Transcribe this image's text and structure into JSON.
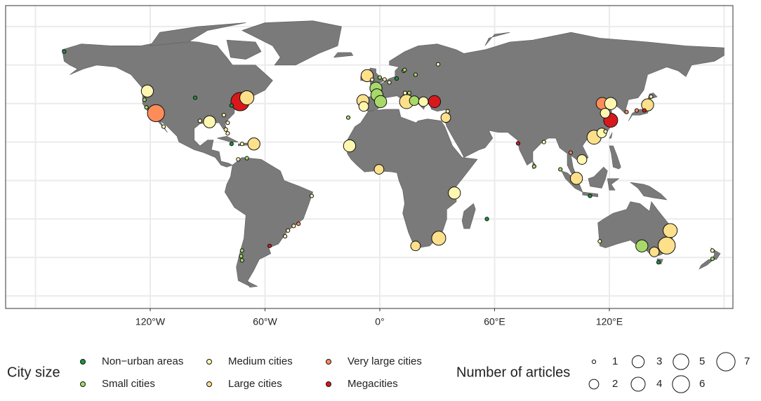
{
  "chart_data": {
    "type": "bubble-map",
    "xlim": [
      -195.6,
      184.6
    ],
    "ylim": [
      -66.5,
      90.9
    ],
    "xticks": [
      {
        "value": -120,
        "label": "120°W"
      },
      {
        "value": -60,
        "label": "60°W"
      },
      {
        "value": 0,
        "label": "0°"
      },
      {
        "value": 60,
        "label": "60°E"
      },
      {
        "value": 120,
        "label": "120°E"
      }
    ],
    "xgrid": [
      -180,
      -120,
      -60,
      0,
      60,
      120,
      180
    ],
    "ygrid": [
      -60,
      -40,
      -20,
      0,
      20,
      40,
      60,
      80
    ],
    "color_legend": {
      "title": "City size",
      "categories": [
        {
          "name": "Non−urban areas",
          "color": "#1a9641"
        },
        {
          "name": "Small cities",
          "color": "#a6d96a"
        },
        {
          "name": "Medium cities",
          "color": "#fff7b0"
        },
        {
          "name": "Large cities",
          "color": "#fee08b"
        },
        {
          "name": "Very large cities",
          "color": "#fc8d59"
        },
        {
          "name": "Megacities",
          "color": "#d7191c"
        }
      ]
    },
    "size_legend": {
      "title": "Number of articles",
      "values": [
        1,
        2,
        3,
        4,
        5,
        6,
        7
      ]
    },
    "points": [
      {
        "lon": -165,
        "lat": 67,
        "articles": 1,
        "class": 0
      },
      {
        "lon": -121.5,
        "lat": 46.5,
        "articles": 3,
        "class": 2
      },
      {
        "lon": -123,
        "lat": 42,
        "articles": 1,
        "class": 1
      },
      {
        "lon": -122,
        "lat": 38,
        "articles": 1,
        "class": 1
      },
      {
        "lon": -117,
        "lat": 35,
        "articles": 6,
        "class": 4
      },
      {
        "lon": -113,
        "lat": 28,
        "articles": 1,
        "class": 2
      },
      {
        "lon": -96.5,
        "lat": 43,
        "articles": 1,
        "class": 0
      },
      {
        "lon": -94,
        "lat": 31,
        "articles": 1,
        "class": 2
      },
      {
        "lon": -89,
        "lat": 30.5,
        "articles": 3,
        "class": 2
      },
      {
        "lon": -81.5,
        "lat": 34,
        "articles": 1,
        "class": 2
      },
      {
        "lon": -77.5,
        "lat": 39,
        "articles": 1,
        "class": 0
      },
      {
        "lon": -73,
        "lat": 41,
        "articles": 7,
        "class": 5
      },
      {
        "lon": -69.5,
        "lat": 43,
        "articles": 4,
        "class": 3
      },
      {
        "lon": -79.5,
        "lat": 30,
        "articles": 1,
        "class": 2
      },
      {
        "lon": -80.5,
        "lat": 26.5,
        "articles": 1,
        "class": 2
      },
      {
        "lon": -79.5,
        "lat": 24.5,
        "articles": 1,
        "class": 2
      },
      {
        "lon": -77.5,
        "lat": 19,
        "articles": 1,
        "class": 0
      },
      {
        "lon": -72,
        "lat": 19,
        "articles": 1,
        "class": 2
      },
      {
        "lon": -65.8,
        "lat": 19,
        "articles": 3,
        "class": 3
      },
      {
        "lon": -74,
        "lat": 11,
        "articles": 1,
        "class": 2
      },
      {
        "lon": -69.5,
        "lat": 11.6,
        "articles": 1,
        "class": 1
      },
      {
        "lon": -35.6,
        "lat": -8,
        "articles": 1,
        "class": 2
      },
      {
        "lon": -42.5,
        "lat": -22.5,
        "articles": 1,
        "class": 4
      },
      {
        "lon": -45,
        "lat": -23.6,
        "articles": 1,
        "class": 2
      },
      {
        "lon": -48,
        "lat": -26,
        "articles": 1,
        "class": 2
      },
      {
        "lon": -49.5,
        "lat": -29,
        "articles": 1,
        "class": 2
      },
      {
        "lon": -57.6,
        "lat": -34,
        "articles": 1,
        "class": 5
      },
      {
        "lon": -72,
        "lat": -36.4,
        "articles": 1,
        "class": 1
      },
      {
        "lon": -72.5,
        "lat": -39.3,
        "articles": 1,
        "class": 1
      },
      {
        "lon": -72,
        "lat": -41.5,
        "articles": 1,
        "class": 1
      },
      {
        "lon": -6.6,
        "lat": 54.5,
        "articles": 3,
        "class": 3
      },
      {
        "lon": -4,
        "lat": 52.4,
        "articles": 1,
        "class": 2
      },
      {
        "lon": 0,
        "lat": 53.5,
        "articles": 1,
        "class": 1
      },
      {
        "lon": -2,
        "lat": 48,
        "articles": 3,
        "class": 1
      },
      {
        "lon": -1.5,
        "lat": 44.5,
        "articles": 3,
        "class": 1
      },
      {
        "lon": 5,
        "lat": 51,
        "articles": 1,
        "class": 2
      },
      {
        "lon": 2.5,
        "lat": 52.5,
        "articles": 1,
        "class": 2
      },
      {
        "lon": 12.5,
        "lat": 57,
        "articles": 1,
        "class": 1
      },
      {
        "lon": 8.8,
        "lat": 53,
        "articles": 1,
        "class": 0
      },
      {
        "lon": 13,
        "lat": 57.5,
        "articles": 1,
        "class": 1
      },
      {
        "lon": 13.2,
        "lat": 45.5,
        "articles": 1,
        "class": 2
      },
      {
        "lon": 15.4,
        "lat": 45.5,
        "articles": 1,
        "class": 1
      },
      {
        "lon": 18.7,
        "lat": 55,
        "articles": 1,
        "class": 1
      },
      {
        "lon": 30.5,
        "lat": 60.4,
        "articles": 1,
        "class": 2
      },
      {
        "lon": -8.8,
        "lat": 41.5,
        "articles": 3,
        "class": 3
      },
      {
        "lon": -8.4,
        "lat": 38.5,
        "articles": 2,
        "class": 2
      },
      {
        "lon": 0.4,
        "lat": 41,
        "articles": 3,
        "class": 1
      },
      {
        "lon": 14,
        "lat": 41,
        "articles": 4,
        "class": 3
      },
      {
        "lon": 18,
        "lat": 41.5,
        "articles": 2,
        "class": 1
      },
      {
        "lon": 22.8,
        "lat": 41,
        "articles": 2,
        "class": 2
      },
      {
        "lon": 28.6,
        "lat": 41,
        "articles": 3,
        "class": 5
      },
      {
        "lon": 34.5,
        "lat": 32.7,
        "articles": 2,
        "class": 3
      },
      {
        "lon": 35.5,
        "lat": 36,
        "articles": 1,
        "class": 2
      },
      {
        "lon": -16.5,
        "lat": 32.7,
        "articles": 1,
        "class": 1
      },
      {
        "lon": -15.8,
        "lat": 18,
        "articles": 3,
        "class": 2
      },
      {
        "lon": -0.4,
        "lat": 5.8,
        "articles": 2,
        "class": 3
      },
      {
        "lon": 39,
        "lat": -6.5,
        "articles": 3,
        "class": 2
      },
      {
        "lon": 18.7,
        "lat": -34,
        "articles": 2,
        "class": 3
      },
      {
        "lon": 30.8,
        "lat": -30,
        "articles": 4,
        "class": 3
      },
      {
        "lon": 56,
        "lat": -20,
        "articles": 1,
        "class": 0
      },
      {
        "lon": 72.3,
        "lat": 19.3,
        "articles": 1,
        "class": 5
      },
      {
        "lon": 85.8,
        "lat": 20,
        "articles": 1,
        "class": 2
      },
      {
        "lon": 80.7,
        "lat": 7.3,
        "articles": 1,
        "class": 1
      },
      {
        "lon": 94.4,
        "lat": 5.8,
        "articles": 1,
        "class": 1
      },
      {
        "lon": 102.8,
        "lat": 1.1,
        "articles": 3,
        "class": 3
      },
      {
        "lon": 105.7,
        "lat": 10.9,
        "articles": 2,
        "class": 2
      },
      {
        "lon": 99.8,
        "lat": 14.5,
        "articles": 1,
        "class": 4
      },
      {
        "lon": 109.9,
        "lat": -8,
        "articles": 1,
        "class": 0
      },
      {
        "lon": 112,
        "lat": 22.5,
        "articles": 4,
        "class": 3
      },
      {
        "lon": 116,
        "lat": 24.7,
        "articles": 2,
        "class": 2
      },
      {
        "lon": 118,
        "lat": 25.5,
        "articles": 1,
        "class": 2
      },
      {
        "lon": 116.3,
        "lat": 40,
        "articles": 3,
        "class": 4
      },
      {
        "lon": 120.7,
        "lat": 40,
        "articles": 3,
        "class": 2
      },
      {
        "lon": 117.8,
        "lat": 35,
        "articles": 2,
        "class": 2
      },
      {
        "lon": 120.7,
        "lat": 31.3,
        "articles": 4,
        "class": 5
      },
      {
        "lon": 129,
        "lat": 35.6,
        "articles": 1,
        "class": 4
      },
      {
        "lon": 134.3,
        "lat": 36.4,
        "articles": 1,
        "class": 4
      },
      {
        "lon": 138.3,
        "lat": 36.4,
        "articles": 1,
        "class": 5
      },
      {
        "lon": 140,
        "lat": 39.3,
        "articles": 3,
        "class": 3
      },
      {
        "lon": 141.8,
        "lat": 43.6,
        "articles": 1,
        "class": 2
      },
      {
        "lon": 115,
        "lat": -31.6,
        "articles": 1,
        "class": 2
      },
      {
        "lon": 137,
        "lat": -34,
        "articles": 3,
        "class": 1
      },
      {
        "lon": 143.5,
        "lat": -37.1,
        "articles": 2,
        "class": 3
      },
      {
        "lon": 150,
        "lat": -33.8,
        "articles": 6,
        "class": 3
      },
      {
        "lon": 151.8,
        "lat": -26,
        "articles": 4,
        "class": 3
      },
      {
        "lon": 145.7,
        "lat": -42.5,
        "articles": 1,
        "class": 0
      },
      {
        "lon": 173.9,
        "lat": -36.4,
        "articles": 1,
        "class": 2
      },
      {
        "lon": 173.9,
        "lat": -40.7,
        "articles": 1,
        "class": 1
      }
    ]
  }
}
